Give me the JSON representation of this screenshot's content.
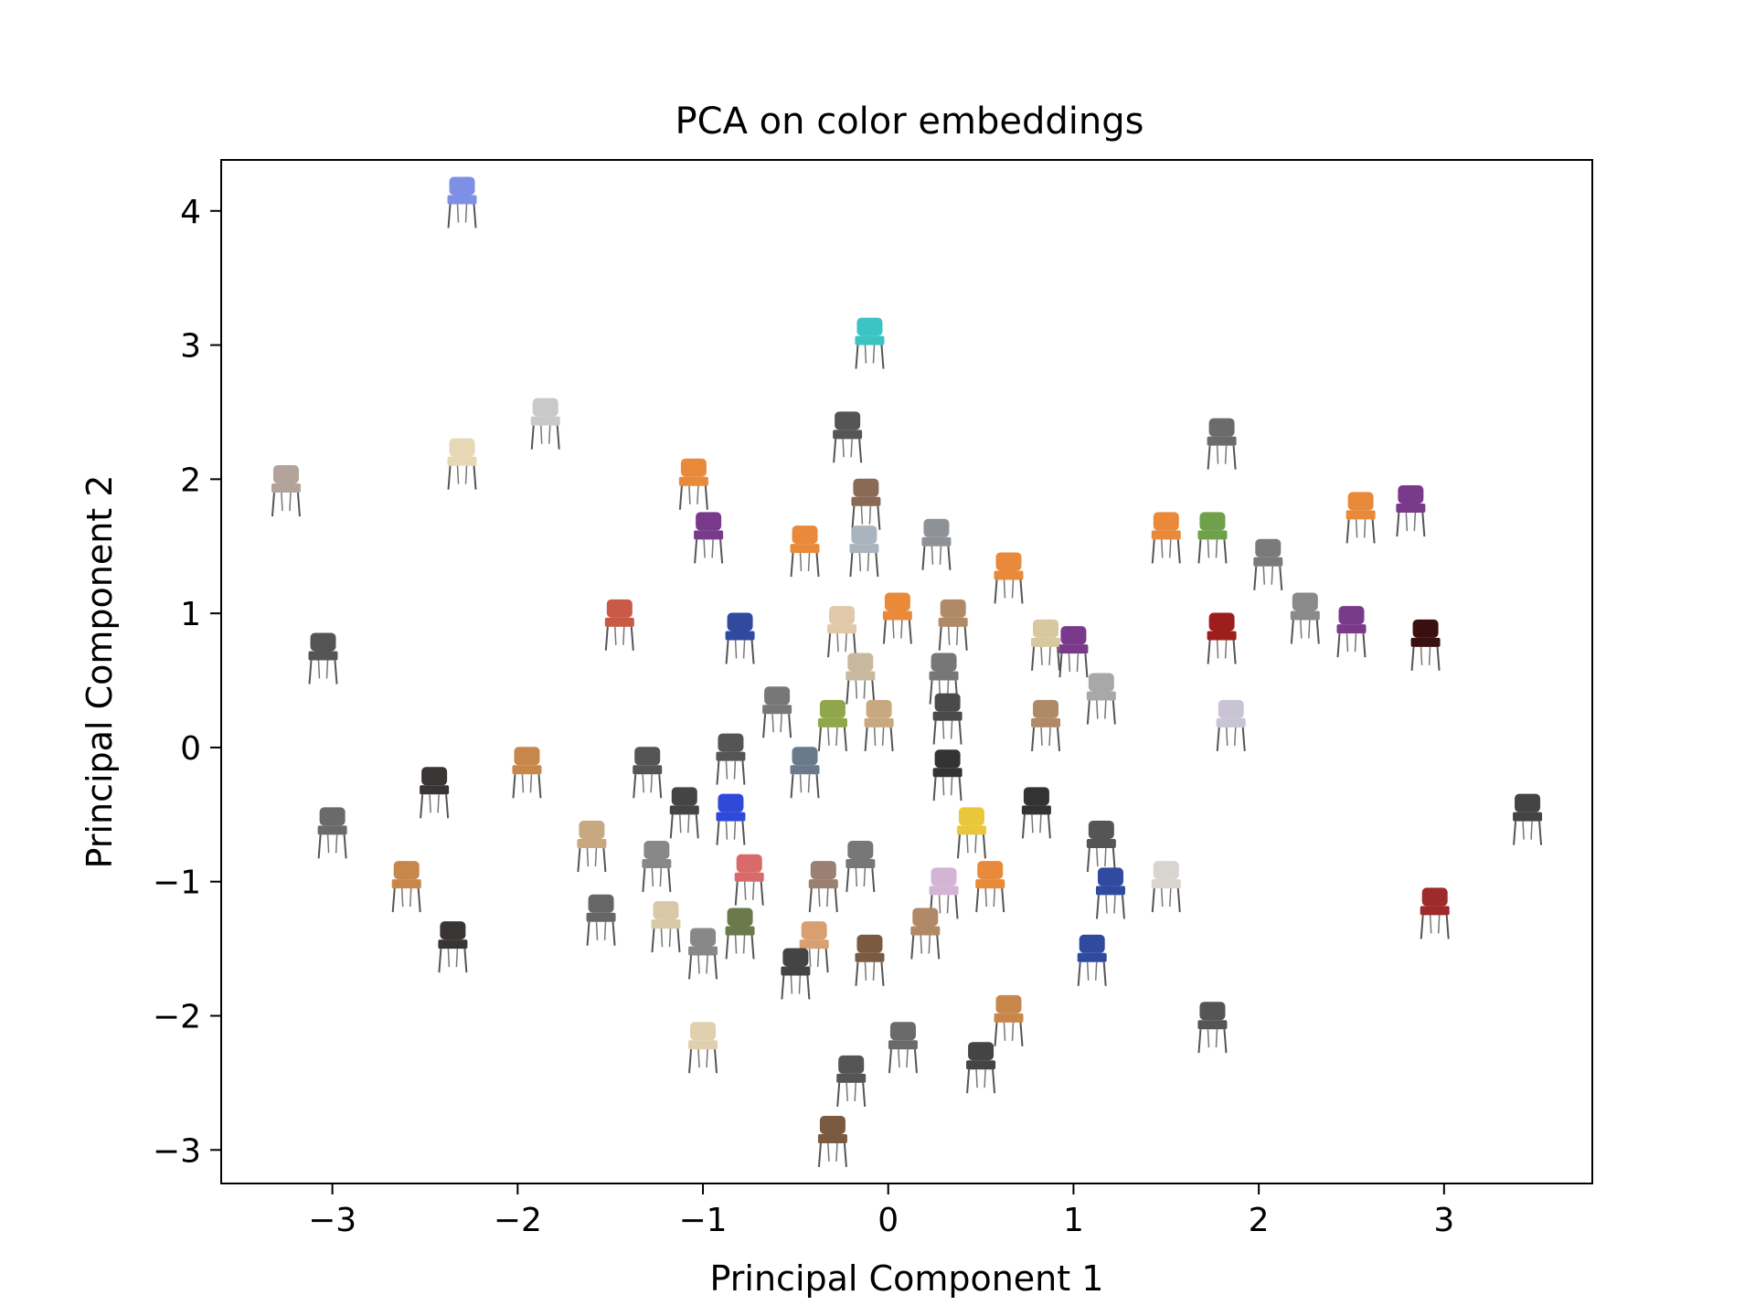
{
  "figure": {
    "title": "PCA on color embeddings"
  },
  "chart_data": {
    "type": "scatter",
    "title": "PCA on color embeddings",
    "xlabel": "Principal Component 1",
    "ylabel": "Principal Component 2",
    "xlim": [
      -3.6,
      3.8
    ],
    "ylim": [
      -3.25,
      4.38
    ],
    "xticks": [
      -3,
      -2,
      -1,
      0,
      1,
      2,
      3
    ],
    "yticks": [
      -3,
      -2,
      -1,
      0,
      1,
      2,
      3,
      4
    ],
    "xtick_labels": [
      "−3",
      "−2",
      "−1",
      "0",
      "1",
      "2",
      "3"
    ],
    "ytick_labels": [
      "−3",
      "−2",
      "−1",
      "0",
      "1",
      "2",
      "3",
      "4"
    ],
    "grid": false,
    "legend": "none",
    "marker": "chair-thumbnail",
    "points": [
      {
        "x": -2.3,
        "y": 4.05,
        "color": "#7d90e6"
      },
      {
        "x": -0.1,
        "y": 3.0,
        "color": "#3cc4c4"
      },
      {
        "x": -1.85,
        "y": 2.4,
        "color": "#c9c9c9"
      },
      {
        "x": -2.3,
        "y": 2.1,
        "color": "#e6d8b4"
      },
      {
        "x": -3.25,
        "y": 1.9,
        "color": "#b3a39b"
      },
      {
        "x": -0.22,
        "y": 2.3,
        "color": "#555555"
      },
      {
        "x": 1.8,
        "y": 2.25,
        "color": "#6b6b6b"
      },
      {
        "x": -1.05,
        "y": 1.95,
        "color": "#e88a3a"
      },
      {
        "x": -0.12,
        "y": 1.8,
        "color": "#8a6a55"
      },
      {
        "x": -0.97,
        "y": 1.55,
        "color": "#7a3a8c"
      },
      {
        "x": -0.45,
        "y": 1.45,
        "color": "#e88a3a"
      },
      {
        "x": -0.13,
        "y": 1.45,
        "color": "#aab4bf"
      },
      {
        "x": 0.26,
        "y": 1.5,
        "color": "#8e9296"
      },
      {
        "x": 0.65,
        "y": 1.25,
        "color": "#e88a3a"
      },
      {
        "x": 1.5,
        "y": 1.55,
        "color": "#e88a3a"
      },
      {
        "x": 1.75,
        "y": 1.55,
        "color": "#6fa04a"
      },
      {
        "x": 2.55,
        "y": 1.7,
        "color": "#e88a3a"
      },
      {
        "x": 2.82,
        "y": 1.75,
        "color": "#7a3a8c"
      },
      {
        "x": 2.05,
        "y": 1.35,
        "color": "#7a7a7a"
      },
      {
        "x": 2.25,
        "y": 0.95,
        "color": "#8a8a8a"
      },
      {
        "x": 1.8,
        "y": 0.8,
        "color": "#9e1e1e"
      },
      {
        "x": 2.5,
        "y": 0.85,
        "color": "#7a3a8c"
      },
      {
        "x": 2.9,
        "y": 0.75,
        "color": "#3a0f0f"
      },
      {
        "x": -3.05,
        "y": 0.65,
        "color": "#555555"
      },
      {
        "x": -1.45,
        "y": 0.9,
        "color": "#c95a48"
      },
      {
        "x": -0.8,
        "y": 0.8,
        "color": "#2f4a9e"
      },
      {
        "x": -0.25,
        "y": 0.85,
        "color": "#e0c8a8"
      },
      {
        "x": 0.05,
        "y": 0.95,
        "color": "#e88a3a"
      },
      {
        "x": 0.35,
        "y": 0.9,
        "color": "#b08a66"
      },
      {
        "x": 0.85,
        "y": 0.75,
        "color": "#d8c8a0"
      },
      {
        "x": 1.0,
        "y": 0.7,
        "color": "#7a3a8c"
      },
      {
        "x": -0.15,
        "y": 0.5,
        "color": "#c8b8a0"
      },
      {
        "x": 0.3,
        "y": 0.5,
        "color": "#777777"
      },
      {
        "x": -0.6,
        "y": 0.25,
        "color": "#777777"
      },
      {
        "x": -0.3,
        "y": 0.15,
        "color": "#8fa64a"
      },
      {
        "x": -0.05,
        "y": 0.15,
        "color": "#c8a880"
      },
      {
        "x": 0.32,
        "y": 0.2,
        "color": "#4a4a4a"
      },
      {
        "x": 0.85,
        "y": 0.15,
        "color": "#b08a66"
      },
      {
        "x": 1.15,
        "y": 0.35,
        "color": "#a8a8a8"
      },
      {
        "x": 1.85,
        "y": 0.15,
        "color": "#c8c4d4"
      },
      {
        "x": -0.85,
        "y": -0.1,
        "color": "#555555"
      },
      {
        "x": -1.95,
        "y": -0.2,
        "color": "#c8874a"
      },
      {
        "x": -1.3,
        "y": -0.2,
        "color": "#555555"
      },
      {
        "x": -2.45,
        "y": -0.35,
        "color": "#3a3535"
      },
      {
        "x": -0.45,
        "y": -0.2,
        "color": "#6a7a8c"
      },
      {
        "x": 0.32,
        "y": -0.22,
        "color": "#333333"
      },
      {
        "x": -1.1,
        "y": -0.5,
        "color": "#444444"
      },
      {
        "x": -0.85,
        "y": -0.55,
        "color": "#2f4ad8"
      },
      {
        "x": 0.45,
        "y": -0.65,
        "color": "#e8c83a"
      },
      {
        "x": 0.8,
        "y": -0.5,
        "color": "#333333"
      },
      {
        "x": -3.0,
        "y": -0.65,
        "color": "#6a6a6a"
      },
      {
        "x": 3.45,
        "y": -0.55,
        "color": "#444444"
      },
      {
        "x": 1.15,
        "y": -0.75,
        "color": "#555555"
      },
      {
        "x": -1.6,
        "y": -0.75,
        "color": "#c8a880"
      },
      {
        "x": -1.25,
        "y": -0.9,
        "color": "#888888"
      },
      {
        "x": -0.15,
        "y": -0.9,
        "color": "#777777"
      },
      {
        "x": -0.75,
        "y": -1.0,
        "color": "#d86a6a"
      },
      {
        "x": -0.35,
        "y": -1.05,
        "color": "#9a8070"
      },
      {
        "x": 0.3,
        "y": -1.1,
        "color": "#d4b4d4"
      },
      {
        "x": 0.55,
        "y": -1.05,
        "color": "#e88a3a"
      },
      {
        "x": 1.5,
        "y": -1.05,
        "color": "#d8d4d0"
      },
      {
        "x": -2.6,
        "y": -1.05,
        "color": "#c8874a"
      },
      {
        "x": 1.2,
        "y": -1.1,
        "color": "#2f4a9e"
      },
      {
        "x": -1.55,
        "y": -1.3,
        "color": "#666666"
      },
      {
        "x": -1.2,
        "y": -1.35,
        "color": "#d8c8a8"
      },
      {
        "x": -0.8,
        "y": -1.4,
        "color": "#6a7a4a"
      },
      {
        "x": -0.4,
        "y": -1.5,
        "color": "#d8a070"
      },
      {
        "x": 0.2,
        "y": -1.4,
        "color": "#b08a66"
      },
      {
        "x": 2.95,
        "y": -1.25,
        "color": "#9e2a2a"
      },
      {
        "x": -2.35,
        "y": -1.5,
        "color": "#3a3535"
      },
      {
        "x": -1.0,
        "y": -1.55,
        "color": "#888888"
      },
      {
        "x": -0.5,
        "y": -1.7,
        "color": "#444444"
      },
      {
        "x": -0.1,
        "y": -1.6,
        "color": "#7a5a40"
      },
      {
        "x": 1.1,
        "y": -1.6,
        "color": "#2f4a9e"
      },
      {
        "x": 0.65,
        "y": -2.05,
        "color": "#c8874a"
      },
      {
        "x": 1.75,
        "y": -2.1,
        "color": "#555555"
      },
      {
        "x": -1.0,
        "y": -2.25,
        "color": "#e0d0b0"
      },
      {
        "x": 0.08,
        "y": -2.25,
        "color": "#6a6a6a"
      },
      {
        "x": 0.5,
        "y": -2.4,
        "color": "#444444"
      },
      {
        "x": -0.2,
        "y": -2.5,
        "color": "#555555"
      },
      {
        "x": -0.3,
        "y": -2.95,
        "color": "#7a5a40"
      }
    ]
  }
}
